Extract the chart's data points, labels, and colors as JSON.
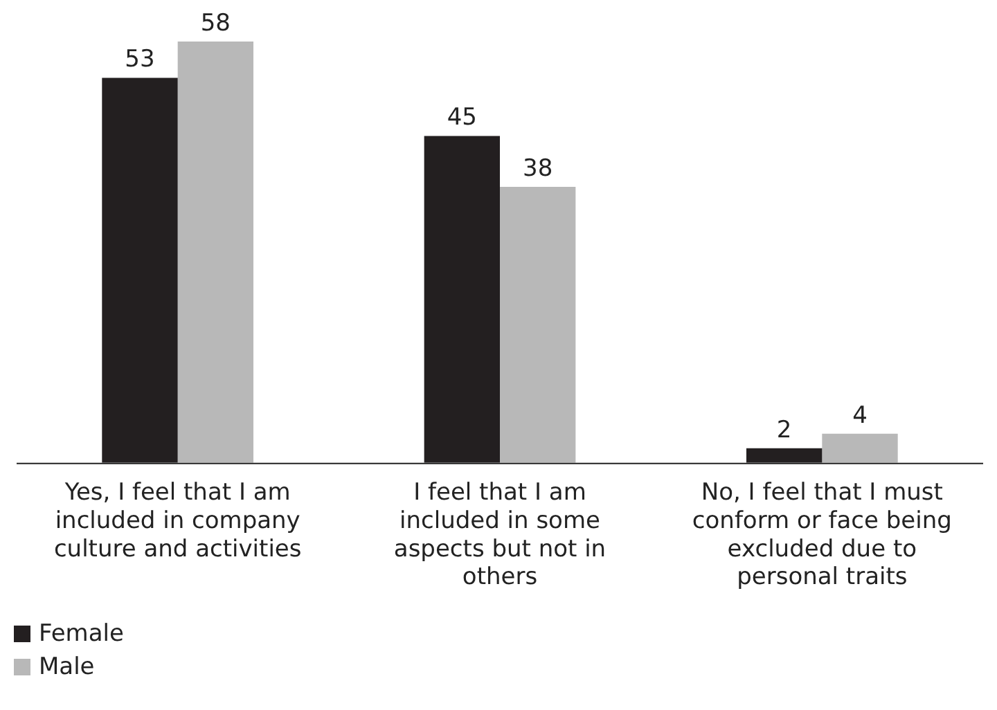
{
  "chart_data": {
    "type": "bar",
    "categories": [
      "Yes, I feel that I am included in company culture and activities",
      "I feel that I am included in some aspects but not in others",
      "No, I feel that I must conform or face being excluded due to personal traits"
    ],
    "series": [
      {
        "name": "Female",
        "color": "#231f20",
        "values": [
          53,
          45,
          2
        ]
      },
      {
        "name": "Male",
        "color": "#b8b8b8",
        "values": [
          58,
          38,
          4
        ]
      }
    ],
    "data_labels": true,
    "legend": "bottom left",
    "grid": false
  }
}
